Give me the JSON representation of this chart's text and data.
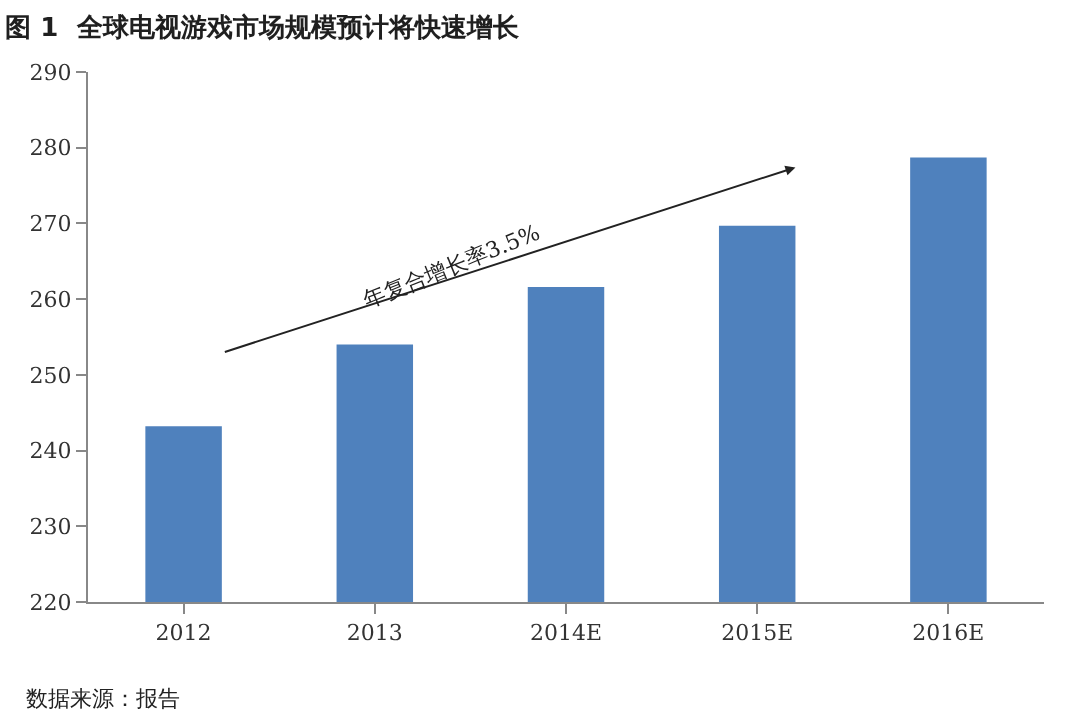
{
  "chart_data": {
    "type": "bar",
    "title": "图 1  全球电视游戏市场规模预计将快速增长",
    "categories": [
      "2012",
      "2013",
      "2014E",
      "2015E",
      "2016E"
    ],
    "values": [
      243.2,
      254.0,
      261.6,
      269.7,
      278.7
    ],
    "color": "#4f81bd",
    "ylim": [
      220,
      290
    ],
    "yticks": [
      220,
      230,
      240,
      250,
      260,
      270,
      280,
      290
    ],
    "grid": false,
    "annotations": [
      "年复合增长率3.5%",
      "数据来源：报告"
    ]
  }
}
